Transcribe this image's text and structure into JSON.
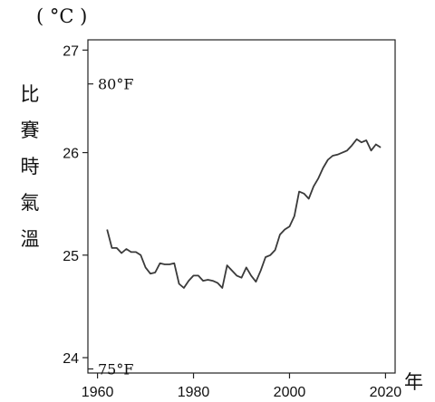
{
  "chart_data": {
    "type": "line",
    "unit_label": "( °C )",
    "ylabel_chars": [
      "比",
      "賽",
      "時",
      "氣",
      "溫"
    ],
    "xlabel": "年",
    "xlim": [
      1958,
      2022
    ],
    "ylim": [
      23.85,
      27.1
    ],
    "x_ticks": [
      1960,
      1980,
      2000,
      2020
    ],
    "y_ticks": [
      24,
      25,
      26,
      27
    ],
    "fahrenheit_marks": [
      {
        "value": 26.67,
        "label": "80°F"
      },
      {
        "value": 23.89,
        "label": "75°F"
      }
    ],
    "series": [
      {
        "x": [
          1962,
          1963,
          1964,
          1965,
          1966,
          1967,
          1968,
          1969,
          1970,
          1971,
          1972,
          1973,
          1974,
          1975,
          1976,
          1977,
          1978,
          1979,
          1980,
          1981,
          1982,
          1983,
          1984,
          1985,
          1986,
          1987,
          1988,
          1989,
          1990,
          1991,
          1992,
          1993,
          1994,
          1995,
          1996,
          1997,
          1998,
          1999,
          2000,
          2001,
          2002,
          2003,
          2004,
          2005,
          2006,
          2007,
          2008,
          2009,
          2010,
          2011,
          2012,
          2013,
          2014,
          2015,
          2016,
          2017,
          2018,
          2019
        ],
        "y": [
          25.25,
          25.07,
          25.07,
          25.02,
          25.06,
          25.03,
          25.03,
          25.0,
          24.88,
          24.82,
          24.83,
          24.92,
          24.91,
          24.91,
          24.92,
          24.72,
          24.68,
          24.75,
          24.8,
          24.8,
          24.75,
          24.76,
          24.75,
          24.73,
          24.68,
          24.9,
          24.85,
          24.8,
          24.78,
          24.88,
          24.8,
          24.74,
          24.85,
          24.98,
          25.0,
          25.05,
          25.2,
          25.25,
          25.28,
          25.38,
          25.62,
          25.6,
          25.55,
          25.67,
          25.75,
          25.85,
          25.93,
          25.97,
          25.98,
          26.0,
          26.02,
          26.07,
          26.13,
          26.1,
          26.12,
          26.02,
          26.08,
          26.05
        ]
      }
    ]
  }
}
